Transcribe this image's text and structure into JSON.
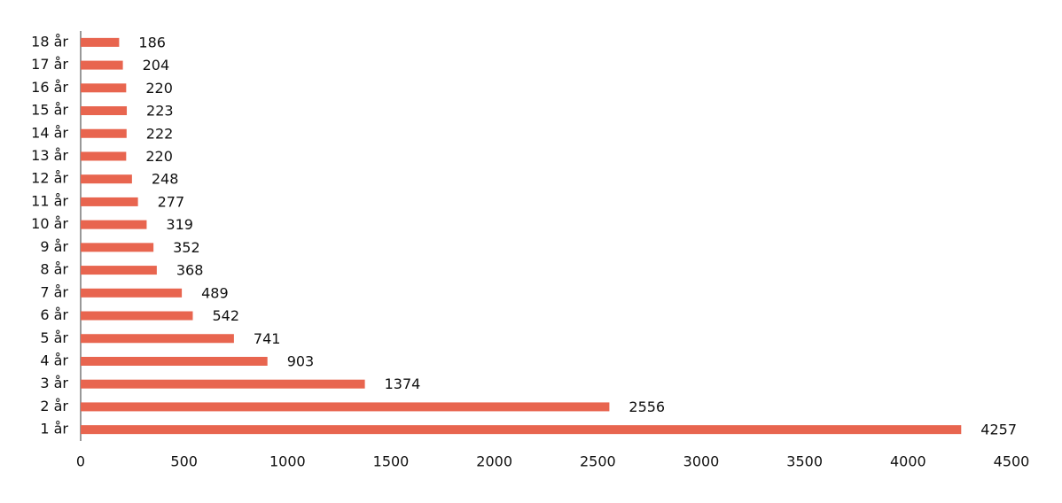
{
  "chart_data": {
    "type": "bar",
    "orientation": "horizontal",
    "categories": [
      "1 år",
      "2 år",
      "3 år",
      "4 år",
      "5 år",
      "6 år",
      "7 år",
      "8 år",
      "9 år",
      "10 år",
      "11 år",
      "12 år",
      "13 år",
      "14 år",
      "15 år",
      "16 år",
      "17 år",
      "18 år"
    ],
    "values": [
      4257,
      2556,
      1374,
      903,
      741,
      542,
      489,
      368,
      352,
      319,
      277,
      248,
      220,
      222,
      223,
      220,
      204,
      186
    ],
    "color": "#e8654f",
    "xlim": [
      0,
      4500
    ],
    "xticks": [
      0,
      500,
      1000,
      1500,
      2000,
      2500,
      3000,
      3500,
      4000,
      4500
    ],
    "grid": false
  }
}
